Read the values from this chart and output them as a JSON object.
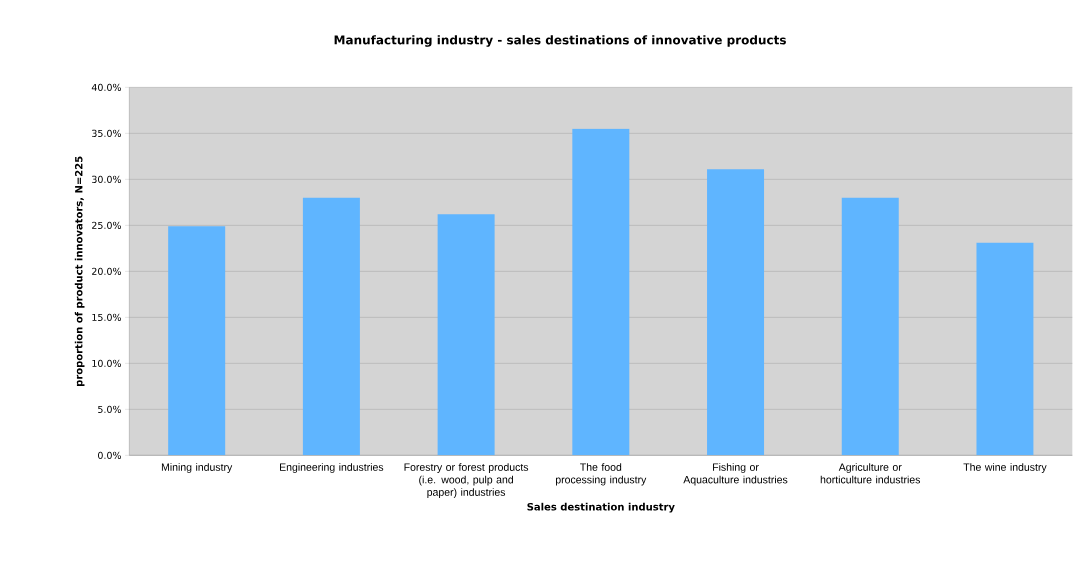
{
  "chart_data": {
    "type": "bar",
    "title": "Manufacturing industry - sales destinations of innovative products",
    "xlabel": "Sales destination industry",
    "ylabel": "proportion of product innovators, N=225",
    "categories": [
      "Mining industry",
      "Engineering industries",
      "Forestry or forest products (i.e. wood, pulp and paper) industries",
      "The food processing industry",
      "Fishing or Aquaculture industries",
      "Agriculture or horticulture industries",
      "The wine industry"
    ],
    "values": [
      24.9,
      28.0,
      26.2,
      35.5,
      31.1,
      28.0,
      23.1
    ],
    "color": "#5fb5ff",
    "ylim": [
      0,
      40
    ],
    "yticks": [
      {
        "value": 0,
        "label": "0.0%"
      },
      {
        "value": 5,
        "label": "5.0%"
      },
      {
        "value": 10,
        "label": "10.0%"
      },
      {
        "value": 15,
        "label": "15.0%"
      },
      {
        "value": 20,
        "label": "20.0%"
      },
      {
        "value": 25,
        "label": "25.0%"
      },
      {
        "value": 30,
        "label": "30.0%"
      },
      {
        "value": 35,
        "label": "35.0%"
      },
      {
        "value": 40,
        "label": "40.0%"
      }
    ],
    "grid": "y"
  }
}
